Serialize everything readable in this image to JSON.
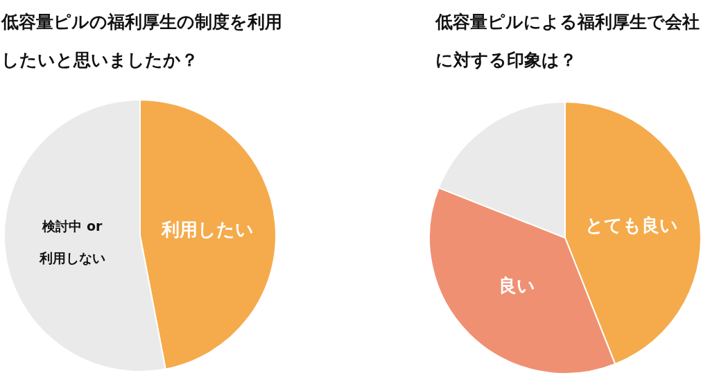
{
  "chart_data": [
    {
      "type": "pie",
      "title": "低容量ピルの福利厚生の制度を利用したいと思いましたか？",
      "categories": [
        "利用したい",
        "検討中 or 利用しない"
      ],
      "values": [
        47,
        53
      ],
      "colors": [
        "#f5ab4b",
        "#e9eae9"
      ],
      "legend": false
    },
    {
      "type": "pie",
      "title": "低容量ピルによる福利厚生で会社に対する印象は？",
      "categories": [
        "とても良い",
        "良い",
        null
      ],
      "values": [
        44,
        37,
        19
      ],
      "colors": [
        "#f5ab4b",
        "#f09073",
        "#e9eae9"
      ],
      "legend": false
    }
  ]
}
